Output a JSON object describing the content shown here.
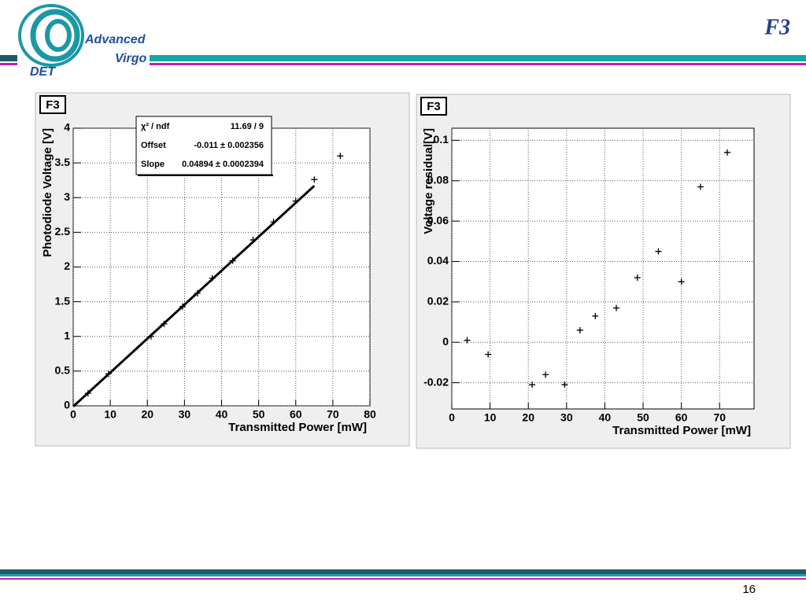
{
  "slide": {
    "title": "F3",
    "page_number": "16",
    "logo": {
      "line1": "Advanced",
      "line2": "Virgo",
      "line3": "DET"
    }
  },
  "chart_data": [
    {
      "type": "scatter",
      "tag": "F3",
      "x_label": "Transmitted Power [mW]",
      "y_label": "Photodiode Voltage [V]",
      "x": [
        4,
        9.5,
        21,
        24.5,
        29.5,
        33.5,
        37.5,
        43,
        48.5,
        54,
        60,
        65,
        72
      ],
      "y": [
        0.18,
        0.46,
        1.0,
        1.18,
        1.43,
        1.62,
        1.84,
        2.09,
        2.39,
        2.65,
        2.95,
        3.26,
        3.6
      ],
      "fit_line": {
        "x": [
          0,
          65
        ],
        "y": [
          -0.01,
          3.17
        ]
      },
      "stats": [
        [
          "χ² / ndf",
          "11.69 / 9"
        ],
        [
          "Offset",
          "-0.011 ± 0.002356"
        ],
        [
          "Slope",
          "0.04894 ± 0.0002394"
        ]
      ],
      "xlim": [
        0,
        80
      ],
      "xticks": [
        0,
        10,
        20,
        30,
        40,
        50,
        60,
        70,
        80
      ],
      "ylim": [
        0,
        4
      ],
      "yticks": [
        0,
        0.5,
        1,
        1.5,
        2,
        2.5,
        3,
        3.5,
        4
      ],
      "grid": true,
      "color": "#000000"
    },
    {
      "type": "scatter",
      "tag": "F3",
      "x_label": "Transmitted Power [mW]",
      "y_label": "Voltage residual[V]",
      "x": [
        4,
        9.5,
        21,
        24.5,
        29.5,
        33.5,
        37.5,
        43,
        48.5,
        54,
        60,
        65,
        72
      ],
      "y": [
        0.001,
        -0.006,
        -0.021,
        -0.016,
        -0.021,
        0.006,
        0.013,
        0.017,
        0.032,
        0.045,
        0.03,
        0.077,
        0.094
      ],
      "xlim": [
        0,
        79
      ],
      "xticks": [
        0,
        10,
        20,
        30,
        40,
        50,
        60,
        70
      ],
      "ylim": [
        -0.033,
        0.106
      ],
      "yticks": [
        -0.02,
        0,
        0.02,
        0.04,
        0.06,
        0.08,
        0.1
      ],
      "grid": true,
      "color": "#000000"
    }
  ]
}
